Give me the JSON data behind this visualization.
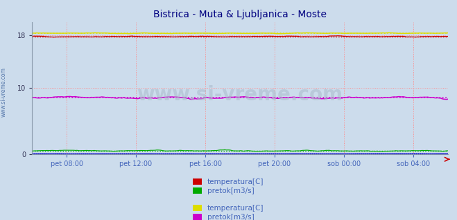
{
  "title": "Bistrica - Muta & Ljubljanica - Moste",
  "title_color": "#000080",
  "background_color": "#ccdcec",
  "plot_bg_color": "#ccdcec",
  "x_labels": [
    "pet 08:00",
    "pet 12:00",
    "pet 16:00",
    "pet 20:00",
    "sob 00:00",
    "sob 04:00"
  ],
  "n_points": 288,
  "ylim": [
    0,
    20
  ],
  "yticks": [
    0,
    10,
    18
  ],
  "grid_color": "#ff8888",
  "watermark": "www.si-vreme.com",
  "watermark_color": "#aabbcc",
  "left_label": "www.si-vreme.com",
  "left_label_color": "#5577aa",
  "bistrica_temp_mean": 17.8,
  "bistrica_temp_color": "#cc0000",
  "bistrica_pretok_mean": 0.5,
  "bistrica_pretok_color": "#00aa00",
  "ljubljanica_temp_mean": 18.3,
  "ljubljanica_temp_color": "#dddd00",
  "ljubljanica_pretok_mean": 8.5,
  "ljubljanica_pretok_color": "#cc00cc",
  "bistrica_visina_mean": 0.06,
  "bistrica_visina_color": "#0000cc",
  "tick_color": "#4466bb",
  "legend_items_group1": [
    {
      "label": "temperatura[C]",
      "color": "#cc0000"
    },
    {
      "label": "pretok[m3/s]",
      "color": "#00aa00"
    }
  ],
  "legend_items_group2": [
    {
      "label": "temperatura[C]",
      "color": "#dddd00"
    },
    {
      "label": "pretok[m3/s]",
      "color": "#cc00cc"
    }
  ]
}
